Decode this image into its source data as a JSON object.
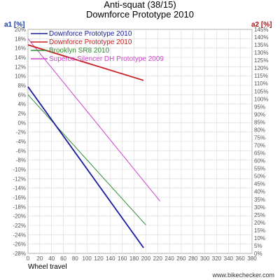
{
  "chart_data": {
    "type": "line",
    "title": "Anti-squat (38/15)",
    "subtitle": "Downforce Prototype 2010",
    "xlabel": "Wheel travel",
    "ylabel_left": "a1 [%]",
    "ylabel_right": "a2 [%]",
    "credit": "www.bikechecker.com",
    "xlim": [
      0,
      380
    ],
    "x_ticks": [
      0,
      20,
      40,
      60,
      80,
      100,
      120,
      140,
      160,
      180,
      200,
      220,
      240,
      260,
      280,
      300,
      320,
      340,
      360,
      380
    ],
    "ylim_left": [
      -28,
      20
    ],
    "y_ticks_left": [
      20,
      18,
      16,
      14,
      12,
      10,
      8,
      6,
      4,
      2,
      0,
      -2,
      -4,
      -6,
      -8,
      -10,
      -12,
      -14,
      -16,
      -18,
      -20,
      -22,
      -24,
      -26,
      -28
    ],
    "ylim_right": [
      0,
      145
    ],
    "y_ticks_right": [
      145,
      140,
      135,
      130,
      125,
      120,
      115,
      110,
      105,
      100,
      95,
      90,
      85,
      80,
      75,
      70,
      65,
      60,
      55,
      50,
      45,
      40,
      35,
      30,
      25,
      20,
      15,
      10,
      5,
      0
    ],
    "grid": true,
    "legend_position": "top-left",
    "series": [
      {
        "name": "Downforce Prototype 2010",
        "axis": "left",
        "color": "#1a1aa0",
        "x": [
          0,
          196
        ],
        "y": [
          7.7,
          -26.8
        ]
      },
      {
        "name": "Downforce Prototype 2010",
        "axis": "right",
        "color": "#c81e1e",
        "x": [
          0,
          196
        ],
        "y": [
          135,
          112
        ]
      },
      {
        "name": "Brooklyn SR8 2010",
        "axis": "left",
        "color": "#2e8b2e",
        "x": [
          0,
          200
        ],
        "y": [
          6.0,
          -21.9
        ]
      },
      {
        "name": "Superco Silencer DH Prototype 2009",
        "axis": "left",
        "color": "#cc44cc",
        "x": [
          0,
          224
        ],
        "y": [
          18.0,
          -16.8
        ]
      }
    ]
  }
}
